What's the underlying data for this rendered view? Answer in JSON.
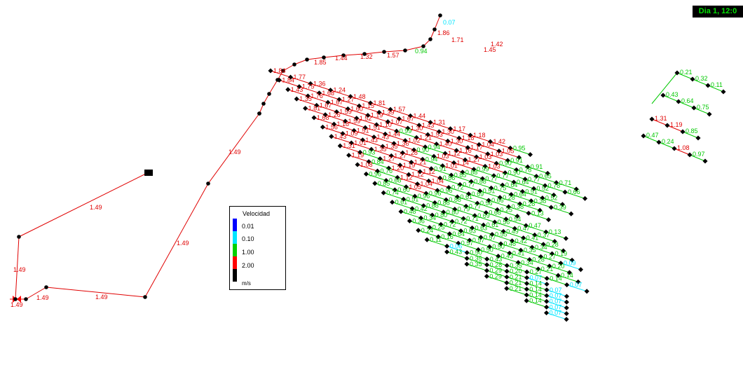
{
  "time_label": "Dia 1, 12:0",
  "legend": {
    "title": "Velocidad",
    "unit": "m/s",
    "items": [
      {
        "label": "0.01",
        "color": "#0000ff"
      },
      {
        "label": "0.10",
        "color": "#00e5ff"
      },
      {
        "label": "1.00",
        "color": "#00d000"
      },
      {
        "label": "2.00",
        "color": "#ff0000"
      },
      {
        "label": "",
        "color": "#000000"
      }
    ]
  },
  "colors": {
    "low": "#00e5ff",
    "medium": "#00c800",
    "high": "#e00000",
    "junction": "#000000"
  },
  "supply_line_labels": [
    "1.49",
    "1.49",
    "1.49",
    "1.49",
    "1.49",
    "1.49",
    "1.49"
  ],
  "header_row": [
    "1.85",
    "1.44",
    "1.32",
    "1.57",
    "0.94",
    "1.86",
    "1.71",
    "1.42",
    "1.45",
    "0.07"
  ],
  "grid_rows": [
    [
      "1.84",
      "1.77",
      "1.36",
      "1.24",
      "1.48",
      "1.81",
      "1.57",
      "1.44",
      "1.31",
      "1.17",
      "1.18",
      "1.42",
      "0.95"
    ],
    [
      "1.84",
      "1.75",
      "1.68",
      "1.27",
      "1.15",
      "1.39",
      "1.67",
      "1.43",
      "1.30",
      "1.18",
      "1.04",
      "1.05"
    ],
    [
      "1.43",
      "1.76",
      "1.67",
      "1.60",
      "1.19",
      "1.07",
      "1.30",
      "1.53",
      "1.30",
      "1.17",
      "1.03",
      "0.91",
      "0.91"
    ],
    [
      "1.35",
      "1.67",
      "1.59",
      "1.52",
      "1.10",
      "0.99",
      "1.21",
      "1.40",
      "1.16",
      "1.03",
      "0.90",
      "0.78",
      "0.65",
      "0.71"
    ],
    [
      "1.81",
      "1.26",
      "1.59",
      "1.51",
      "1.44",
      "1.02",
      "0.94",
      "1.12",
      "1.27",
      "1.03",
      "0.90",
      "0.77",
      "0.78",
      "0.66"
    ],
    [
      "1.68",
      "1.18",
      "1.51",
      "1.43",
      "1.36",
      "0.90",
      "1.03",
      "1.14",
      "0.99",
      "0.77",
      "0.64",
      "0.52"
    ],
    [
      "1.56",
      "1.09",
      "1.43",
      "1.35",
      "1.28",
      "0.94",
      "1.01",
      "0.88",
      "0.77",
      "0.64",
      "0.51",
      "0.52"
    ],
    [
      "1.43",
      "1.01",
      "1.35",
      "1.27",
      "1.21",
      "0.91",
      "0.85",
      "0.88",
      "0.75",
      "0.64",
      "0.38",
      "0.39"
    ],
    [
      "1.31",
      "0.93",
      "1.27",
      "1.19",
      "1.12",
      "0.86",
      "0.77",
      "0.51",
      "0.28",
      "0.28"
    ],
    [
      "1.19",
      "0.84",
      "1.20",
      "1.12",
      "1.04",
      "0.72",
      "0.69",
      "0.66",
      "0.38",
      "0.13"
    ],
    [
      "1.08",
      "0.76",
      "1.12",
      "1.04",
      "0.96",
      "0.61",
      "0.56",
      "0.25"
    ],
    [
      "0.96",
      "0.68",
      "1.05",
      "0.96",
      "0.88",
      "0.77",
      "0.68",
      "0.54",
      "0.47",
      "0.13"
    ],
    [
      "0.85",
      "0.60",
      "0.96",
      "0.88",
      "0.79",
      "0.69",
      "0.56",
      "0.47",
      "0.37"
    ],
    [
      "0.74",
      "0.51",
      "0.88",
      "0.80",
      "0.71",
      "0.61",
      "0.49",
      "0.41",
      "0.28"
    ],
    [
      "0.61",
      "0.42",
      "0.80",
      "0.72",
      "0.63",
      "0.55",
      "0.42",
      "0.34",
      "0.19"
    ],
    [
      "0.48",
      "0.34",
      "0.72",
      "0.63",
      "0.57",
      "0.48",
      "0.35",
      "0.27",
      "0.09"
    ],
    [
      "0.36",
      "0.25",
      "0.64",
      "0.57",
      "0.50",
      "0.41",
      "0.28",
      "0.20"
    ],
    [
      "0.24",
      "0.16",
      "0.57",
      "0.50",
      "0.43",
      "0.34",
      "0.21",
      "0.14"
    ],
    [
      "0.11",
      "0.06",
      "0.50",
      "0.43",
      "0.35",
      "0.27",
      "0.14",
      "0.07"
    ],
    [
      "0.43",
      "0.35",
      "0.28",
      "0.20",
      "0.07"
    ],
    [
      "0.35",
      "0.29",
      "0.21",
      "0.14",
      "0.07"
    ],
    [
      "0.29",
      "0.21",
      "0.14",
      "0.07"
    ],
    [
      "0.21",
      "0.14",
      "0.07"
    ],
    [
      "0.14",
      "0.07"
    ],
    [
      "0.07"
    ]
  ],
  "right_cluster": [
    [
      "0.21",
      "0.32",
      "0.11"
    ],
    [
      "0.43",
      "0.64",
      "0.75"
    ],
    [
      "1.31",
      "1.19",
      "0.85"
    ],
    [
      "0.47",
      "0.24",
      "1.08",
      "0.97"
    ]
  ]
}
